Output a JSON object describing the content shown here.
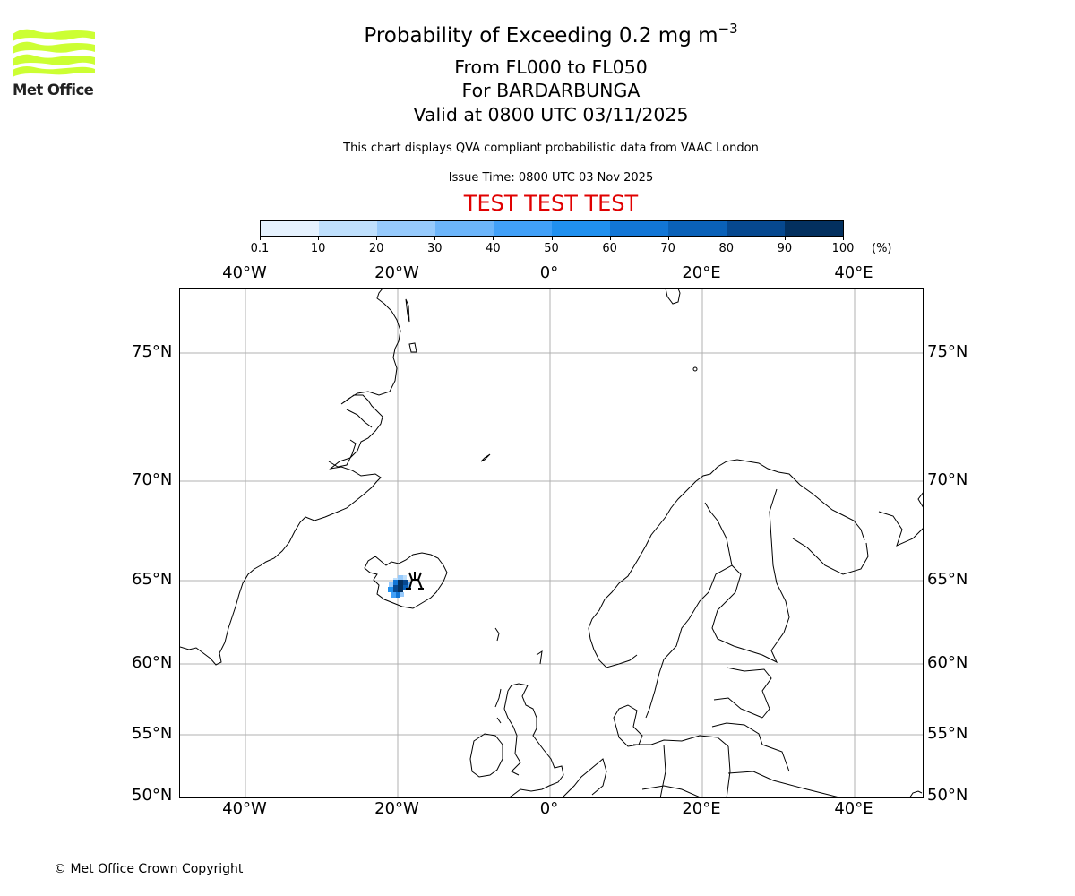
{
  "logo": {
    "text": "Met Office",
    "color": "#ccff33",
    "icon": "met-office-waves-icon"
  },
  "header": {
    "title_prefix": "Probability of Exceeding 0.2 mg m",
    "title_superscript": "−3",
    "levels": "From FL000 to FL050",
    "volcano": "For BARDARBUNGA",
    "valid": "Valid at 0800 UTC 03/11/2025",
    "subtitle": "This chart displays QVA compliant probabilistic data from VAAC London",
    "issue_time": "Issue Time: 0800 UTC 03 Nov 2025",
    "test_banner": "TEST TEST TEST",
    "test_color": "#e00000"
  },
  "colorbar": {
    "unit": "(%)",
    "ticks": [
      "0.1",
      "10",
      "20",
      "30",
      "40",
      "50",
      "60",
      "70",
      "80",
      "90",
      "100"
    ],
    "colors": [
      "#e6f2fe",
      "#bfe0fd",
      "#96cafc",
      "#6cb5fa",
      "#41a0f8",
      "#2090ef",
      "#1276d6",
      "#0a61b8",
      "#06488f",
      "#03305f"
    ]
  },
  "map": {
    "projection": "PlateCarree-like",
    "extent": {
      "lon_min": -48.5,
      "lon_max": 49,
      "lat_min": 50,
      "lat_max": 78
    },
    "lon_labels": [
      "40°W",
      "20°W",
      "0°",
      "20°E",
      "40°E"
    ],
    "lat_labels": [
      "75°N",
      "70°N",
      "65°N",
      "60°N",
      "55°N",
      "50°N"
    ],
    "volcano_marker": {
      "name": "BARDARBUNGA",
      "icon": "volcano-symbol-icon",
      "lon": -17.5,
      "lat": 64.6
    },
    "ash_plume": {
      "location": "southwest-central Iceland",
      "max_probability_band": "90-100"
    }
  },
  "footer": {
    "copyright": "© Met Office Crown Copyright"
  }
}
